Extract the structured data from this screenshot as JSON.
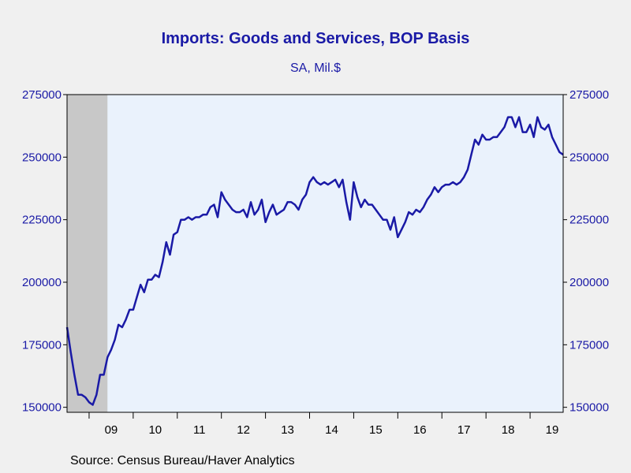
{
  "chart_data": {
    "type": "line",
    "title": "Imports: Goods and Services, BOP Basis",
    "subtitle": "SA, Mil.$",
    "source": "Source:  Census Bureau/Haver Analytics",
    "ylim": [
      148000,
      275000
    ],
    "y_ticks": [
      150000,
      175000,
      200000,
      225000,
      250000,
      275000
    ],
    "y_tick_labels": [
      "150000",
      "175000",
      "200000",
      "225000",
      "250000",
      "275000"
    ],
    "x_range": [
      "2008-07",
      "2019-10"
    ],
    "x_tick_labels": [
      {
        "label": "09",
        "year": 2009
      },
      {
        "label": "10",
        "year": 2010
      },
      {
        "label": "11",
        "year": 2011
      },
      {
        "label": "12",
        "year": 2012
      },
      {
        "label": "13",
        "year": 2013
      },
      {
        "label": "14",
        "year": 2014
      },
      {
        "label": "15",
        "year": 2015
      },
      {
        "label": "16",
        "year": 2016
      },
      {
        "label": "17",
        "year": 2017
      },
      {
        "label": "18",
        "year": 2018
      },
      {
        "label": "19",
        "year": 2019
      }
    ],
    "recession_band": {
      "start": "2008-07",
      "end": "2009-06"
    },
    "dual_y_axis": true,
    "grid": false,
    "colors": {
      "line": "#1a1aa6",
      "plot_bg": "#eaf2fc",
      "recession": "#c8c8c8",
      "text": "#1a1aa6"
    },
    "series": [
      {
        "start": "2008-07",
        "frequency": "monthly",
        "values": [
          182000,
          172000,
          163000,
          155000,
          155000,
          154000,
          152000,
          151000,
          155000,
          163000,
          163000,
          170000,
          173000,
          177000,
          183000,
          182000,
          185000,
          189000,
          189000,
          194000,
          199000,
          196000,
          201000,
          201000,
          203000,
          202000,
          208000,
          216000,
          211000,
          219000,
          220000,
          225000,
          225000,
          226000,
          225000,
          226000,
          226000,
          227000,
          227000,
          230000,
          231000,
          226000,
          236000,
          233000,
          231000,
          229000,
          228000,
          228000,
          229000,
          226000,
          232000,
          227000,
          229000,
          233000,
          224000,
          228000,
          231000,
          227000,
          228000,
          229000,
          232000,
          232000,
          231000,
          229000,
          233000,
          235000,
          240000,
          242000,
          240000,
          239000,
          240000,
          239000,
          240000,
          241000,
          238000,
          241000,
          232000,
          225000,
          240000,
          234000,
          230000,
          233000,
          231000,
          231000,
          229000,
          227000,
          225000,
          225000,
          221000,
          226000,
          218000,
          221000,
          224000,
          228000,
          227000,
          229000,
          228000,
          230000,
          233000,
          235000,
          238000,
          236000,
          238000,
          239000,
          239000,
          240000,
          239000,
          240000,
          242000,
          245000,
          251000,
          257000,
          255000,
          259000,
          257000,
          257000,
          258000,
          258000,
          260000,
          262000,
          266000,
          266000,
          262000,
          266000,
          260000,
          260000,
          263000,
          258000,
          266000,
          262000,
          261000,
          263000,
          258000,
          255000,
          252000,
          251000
        ]
      }
    ]
  }
}
